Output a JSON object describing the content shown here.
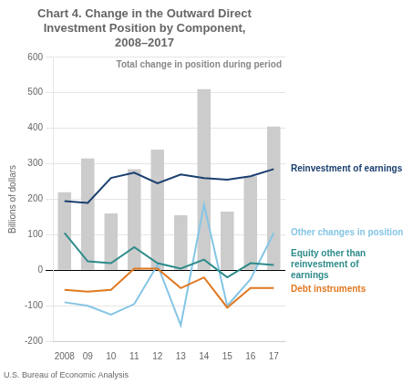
{
  "chart_data": {
    "type": "bar",
    "title": "Chart 4. Change in the Outward Direct\nInvestment Position by Component,\n2008–2017",
    "y_label": "Billions of dollars",
    "source": "U.S. Bureau of Economic Analysis",
    "categories": [
      "2008",
      "09",
      "10",
      "11",
      "12",
      "13",
      "14",
      "15",
      "16",
      "17"
    ],
    "series": [
      {
        "name": "Total change in position during period",
        "type": "bar",
        "color": "#cccccc",
        "values": [
          220,
          315,
          160,
          285,
          340,
          155,
          510,
          165,
          265,
          405
        ]
      },
      {
        "name": "Reinvestment of earnings",
        "type": "line",
        "color": "#1a3f6f",
        "values": [
          195,
          190,
          260,
          275,
          245,
          270,
          260,
          255,
          265,
          285
        ]
      },
      {
        "name": "Equity other than\nreinvestment of\nearnings",
        "type": "line",
        "color": "#2e8b8b",
        "values": [
          105,
          25,
          20,
          65,
          20,
          5,
          30,
          -20,
          20,
          15
        ]
      },
      {
        "name": "Debt instruments",
        "type": "line",
        "color": "#e07820",
        "values": [
          -55,
          -60,
          -55,
          5,
          5,
          -50,
          -20,
          -105,
          -50,
          -50
        ]
      },
      {
        "name": "Other changes in position",
        "type": "line",
        "color": "#85c5e5",
        "values": [
          -90,
          -100,
          -125,
          -95,
          15,
          -155,
          185,
          -100,
          -25,
          105
        ]
      }
    ],
    "ylim": [
      -200,
      600
    ],
    "yticks": [
      -200,
      -100,
      0,
      100,
      200,
      300,
      400,
      500,
      600
    ],
    "grid": true
  }
}
